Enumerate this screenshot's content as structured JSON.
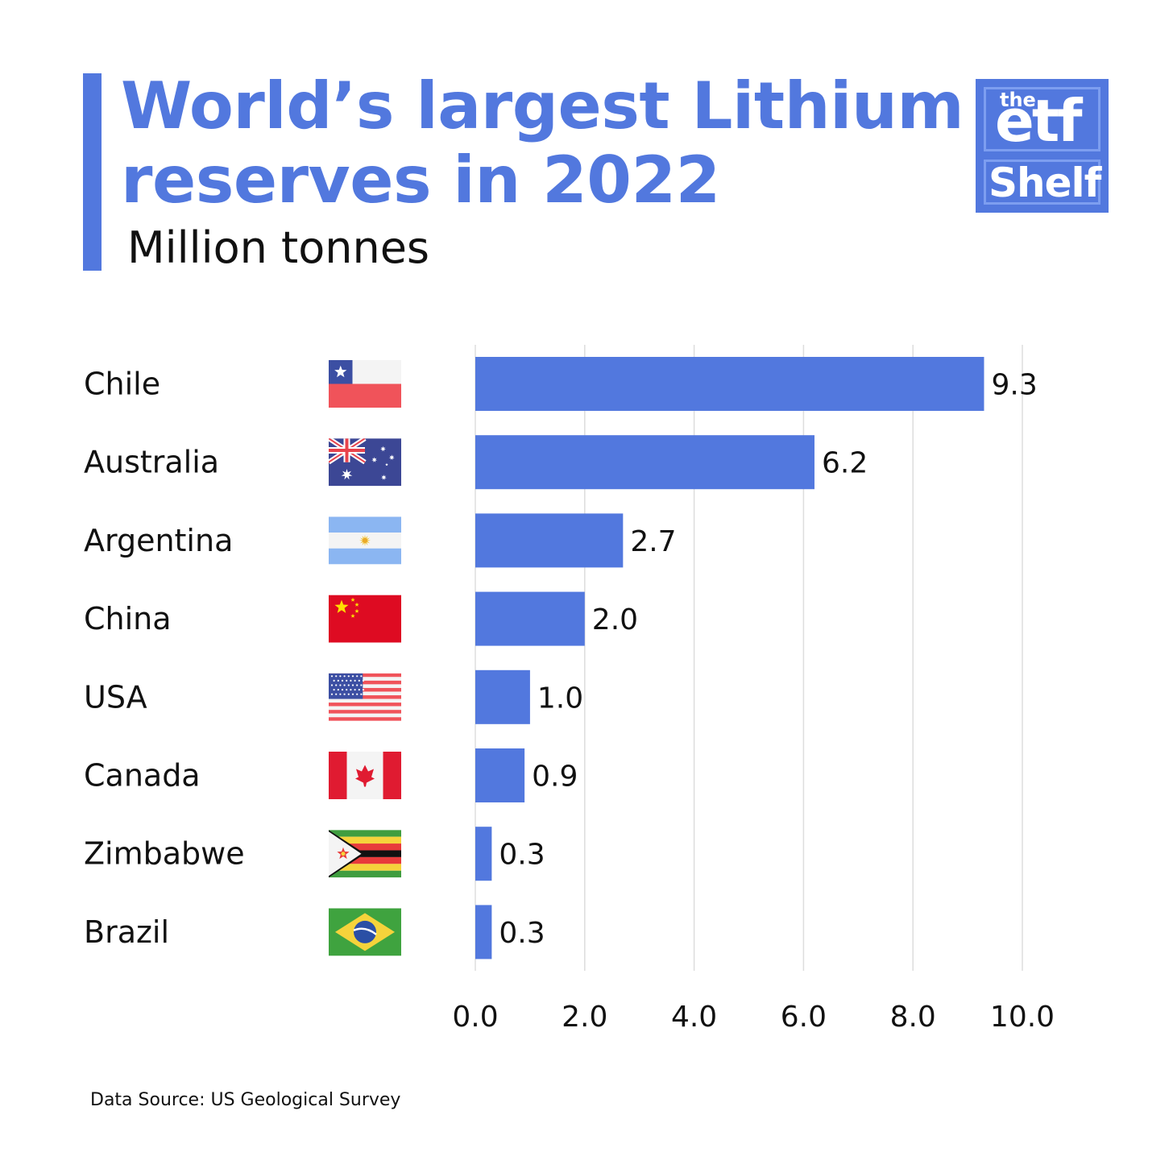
{
  "theme": {
    "accent": "#5278de",
    "grid": "#dddddd"
  },
  "header": {
    "title_line1": "World’s largest Lithium",
    "title_line2": "reserves in 2022",
    "subtitle": "Million tonnes"
  },
  "logo": {
    "the": "the",
    "etf": "etf",
    "shelf": "Shelf"
  },
  "footer": {
    "source": "Data Source: US Geological Survey"
  },
  "chart_data": {
    "type": "bar",
    "orientation": "horizontal",
    "title": "World’s largest Lithium reserves in 2022",
    "subtitle": "Million tonnes",
    "categories": [
      "Chile",
      "Australia",
      "Argentina",
      "China",
      "USA",
      "Canada",
      "Zimbabwe",
      "Brazil"
    ],
    "values": [
      9.3,
      6.2,
      2.7,
      2.0,
      1.0,
      0.9,
      0.3,
      0.3
    ],
    "value_labels": [
      "9.3",
      "6.2",
      "2.7",
      "2.0",
      "1.0",
      "0.9",
      "0.3",
      "0.3"
    ],
    "flags": [
      "chile-flag",
      "australia-flag",
      "argentina-flag",
      "china-flag",
      "usa-flag",
      "canada-flag",
      "zimbabwe-flag",
      "brazil-flag"
    ],
    "xlim": [
      0,
      10
    ],
    "xticks": [
      0,
      2,
      4,
      6,
      8,
      10
    ],
    "xtick_labels": [
      "0.0",
      "2.0",
      "4.0",
      "6.0",
      "8.0",
      "10.0"
    ],
    "grid": "vertical",
    "legend": "none"
  }
}
